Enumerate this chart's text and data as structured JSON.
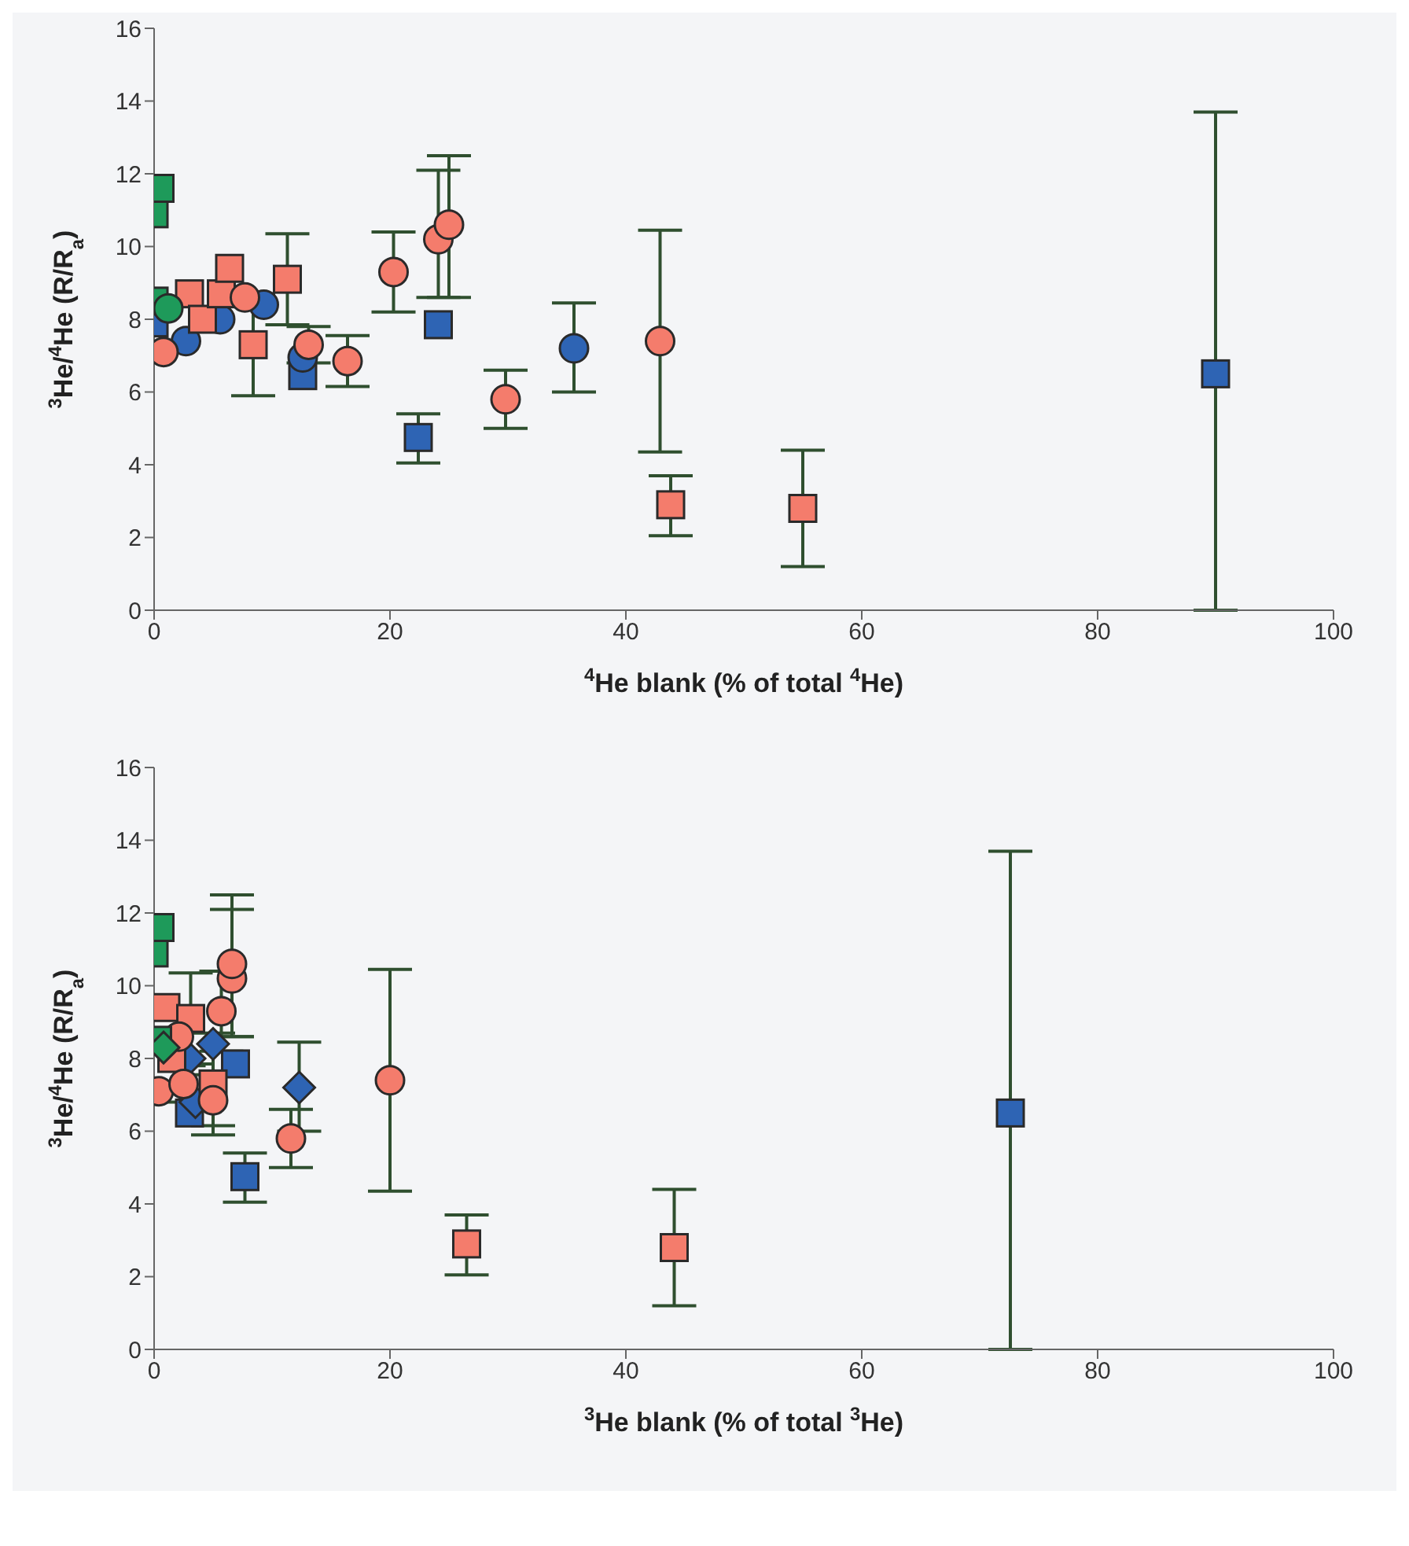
{
  "chart_data": [
    {
      "type": "scatter",
      "xlabel": "$^{4}$He blank (% of total $^{4}$He)",
      "ylabel": "$^{3}$He/$^{4}$He (R/R$_{a}$)",
      "xlim": [
        0,
        100
      ],
      "xticks": [
        0,
        20,
        40,
        60,
        80,
        100
      ],
      "ylim": [
        0,
        16
      ],
      "yticks": [
        0,
        2,
        4,
        6,
        8,
        10,
        12,
        14,
        16
      ],
      "grid": false,
      "legend": false,
      "series": [
        {
          "marker": "square",
          "color": "#2e64b4",
          "x": [
            0,
            12.6,
            22.4,
            24.1,
            90
          ],
          "values": [
            7.9,
            6.45,
            4.75,
            7.85,
            6.5
          ],
          "errors": [
            null,
            null,
            [
              4.05,
              5.4
            ],
            null,
            [
              0,
              13.7
            ]
          ]
        },
        {
          "marker": "circle",
          "color": "#2e64b4",
          "x": [
            2.7,
            5.6,
            9.3,
            12.6,
            35.6
          ],
          "values": [
            7.4,
            8.0,
            8.4,
            6.95,
            7.2
          ],
          "errors": [
            null,
            null,
            null,
            null,
            [
              6.0,
              8.45
            ]
          ]
        },
        {
          "marker": "square",
          "color": "#f47c6c",
          "x": [
            3,
            4.1,
            5.7,
            6.4,
            8.4,
            11.3,
            43.8,
            55
          ],
          "values": [
            8.7,
            8.0,
            8.7,
            9.4,
            7.3,
            9.1,
            2.9,
            2.8
          ],
          "errors": [
            null,
            null,
            null,
            null,
            1.4,
            1.25,
            [
              2.05,
              3.7
            ],
            [
              1.2,
              4.4
            ]
          ]
        },
        {
          "marker": "circle",
          "color": "#f47c6c",
          "x": [
            0.8,
            7.7,
            13.1,
            16.4,
            20.3,
            24.1,
            25,
            29.8,
            42.9
          ],
          "values": [
            7.1,
            8.6,
            7.3,
            6.85,
            9.3,
            10.2,
            10.6,
            5.8,
            7.4
          ],
          "errors": [
            null,
            null,
            0.5,
            0.7,
            1.1,
            [
              8.6,
              12.1
            ],
            [
              8.6,
              12.5
            ],
            0.8,
            3.05
          ]
        },
        {
          "marker": "square",
          "color": "#1e9a5a",
          "x": [
            0,
            0.5,
            0
          ],
          "values": [
            10.9,
            11.6,
            8.5
          ]
        },
        {
          "marker": "circle",
          "color": "#1e9a5a",
          "x": [
            1.2
          ],
          "values": [
            8.3
          ]
        }
      ]
    },
    {
      "type": "scatter",
      "xlabel": "$^{3}$He blank (% of total $^{3}$He)",
      "ylabel": "$^{3}$He/$^{4}$He (R/R$_{a}$)",
      "xlim": [
        0,
        100
      ],
      "xticks": [
        0,
        20,
        40,
        60,
        80,
        100
      ],
      "ylim": [
        0,
        16
      ],
      "yticks": [
        0,
        2,
        4,
        6,
        8,
        10,
        12,
        14,
        16
      ],
      "grid": false,
      "legend": false,
      "series": [
        {
          "marker": "square",
          "color": "#2e64b4",
          "x": [
            3.0,
            7.7,
            6.9,
            72.6
          ],
          "values": [
            6.5,
            4.75,
            7.85,
            6.5
          ],
          "errors": [
            null,
            [
              4.05,
              5.4
            ],
            null,
            [
              0,
              13.7
            ]
          ]
        },
        {
          "marker": "diamond",
          "color": "#2e64b4",
          "x": [
            3,
            5,
            3.5,
            12.3
          ],
          "values": [
            8.0,
            8.4,
            6.8,
            7.2
          ],
          "errors": [
            null,
            null,
            null,
            [
              6.0,
              8.45
            ]
          ]
        },
        {
          "marker": "square",
          "color": "#f47c6c",
          "x": [
            1.5,
            1.0,
            5.0,
            3.1,
            26.5,
            44.1
          ],
          "values": [
            8.0,
            9.4,
            7.3,
            9.1,
            2.9,
            2.8
          ],
          "errors": [
            null,
            null,
            1.4,
            1.25,
            [
              2.05,
              3.7
            ],
            [
              1.2,
              4.4
            ]
          ]
        },
        {
          "marker": "circle",
          "color": "#f47c6c",
          "x": [
            0.4,
            2.1,
            2.5,
            5.0,
            5.7,
            6.6,
            6.6,
            11.6,
            20.0
          ],
          "values": [
            7.1,
            8.6,
            7.3,
            6.85,
            9.3,
            10.2,
            10.6,
            5.8,
            7.4
          ],
          "errors": [
            null,
            null,
            0.5,
            0.7,
            1.1,
            [
              8.6,
              12.1
            ],
            [
              8.6,
              12.5
            ],
            0.8,
            3.05
          ]
        },
        {
          "marker": "square",
          "color": "#1e9a5a",
          "x": [
            0,
            0.5,
            0.3
          ],
          "values": [
            10.9,
            11.6,
            8.5
          ]
        },
        {
          "marker": "diamond",
          "color": "#1e9a5a",
          "x": [
            0.8
          ],
          "values": [
            8.3
          ]
        }
      ]
    }
  ]
}
